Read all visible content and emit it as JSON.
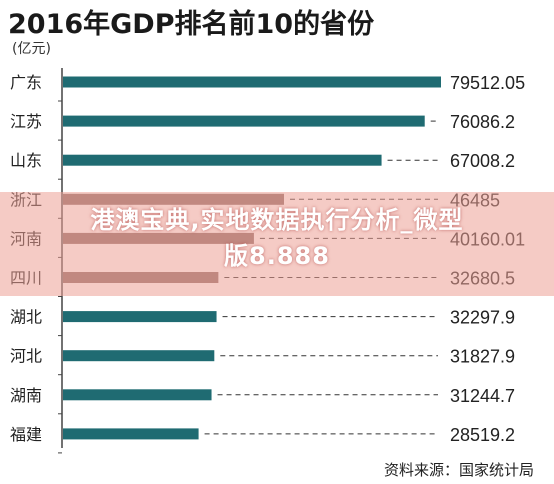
{
  "chart_data": {
    "type": "bar",
    "orientation": "horizontal",
    "title": "2016年GDP排名前10的省份",
    "unit": "(亿元)",
    "categories": [
      "广东",
      "江苏",
      "山东",
      "浙江",
      "河南",
      "四川",
      "湖北",
      "河北",
      "湖南",
      "福建"
    ],
    "values": [
      79512.05,
      76086.2,
      67008.2,
      46485,
      40160.01,
      32680.5,
      32297.9,
      31827.9,
      31244.7,
      28519.2
    ],
    "value_labels": [
      "79512.05",
      "76086.2",
      "67008.2",
      "46485",
      "40160.01",
      "32680.5",
      "32297.9",
      "31827.9",
      "31244.7",
      "28519.2"
    ],
    "xlim": [
      0,
      79512.05
    ],
    "grid": false,
    "source": "资料来源：国家统计局",
    "colors": {
      "bar": "#1f6b72",
      "bar_overlay": "#8c6a66",
      "axis": "#444444",
      "dash": "#333333"
    }
  },
  "watermark": {
    "line1": "港澳宝典,实地数据执行分析_微型",
    "line2": "版8.888"
  }
}
